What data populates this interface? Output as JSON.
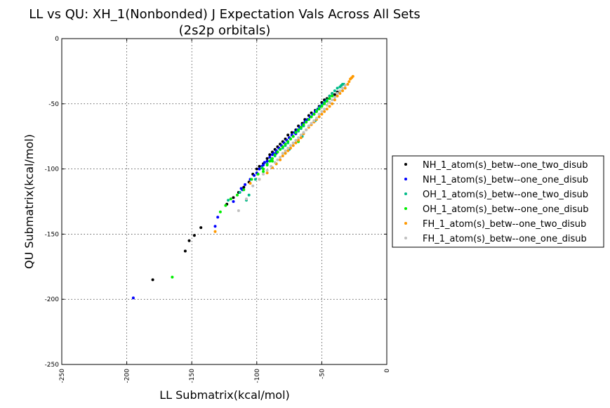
{
  "chart_data": {
    "type": "scatter",
    "title": [
      "LL vs QU: XH_1(Nonbonded) J Expectation Vals Across All Sets",
      "(2s2p orbitals)"
    ],
    "xlabel": "LL Submatrix(kcal/mol)",
    "ylabel": "QU Submatrix(kcal/mol)",
    "xlim": [
      -250,
      0
    ],
    "ylim": [
      -250,
      0
    ],
    "xticks": [
      -250,
      -200,
      -150,
      -100,
      -50,
      0
    ],
    "yticks": [
      0,
      -50,
      -100,
      -150,
      -200,
      -250
    ],
    "grid": true,
    "legend_position": "outside-right",
    "series": [
      {
        "name": "NH_1_atom(s)_betw--one_two_disub",
        "color": "#000000",
        "points": [
          [
            -180,
            -185
          ],
          [
            -155,
            -163
          ],
          [
            -152,
            -155
          ],
          [
            -148,
            -151
          ],
          [
            -143,
            -145
          ],
          [
            -123,
            -127
          ],
          [
            -118,
            -122
          ],
          [
            -114,
            -118
          ],
          [
            -110,
            -114
          ],
          [
            -106,
            -110
          ],
          [
            -103,
            -104
          ],
          [
            -100,
            -100
          ],
          [
            -98,
            -98
          ],
          [
            -95,
            -96
          ],
          [
            -92,
            -92
          ],
          [
            -90,
            -89
          ],
          [
            -88,
            -87
          ],
          [
            -86,
            -85
          ],
          [
            -84,
            -83
          ],
          [
            -82,
            -81
          ],
          [
            -80,
            -79
          ],
          [
            -78,
            -77
          ],
          [
            -76,
            -74
          ],
          [
            -73,
            -72
          ],
          [
            -70,
            -70
          ],
          [
            -68,
            -67
          ],
          [
            -65,
            -65
          ],
          [
            -63,
            -62
          ],
          [
            -60,
            -59
          ],
          [
            -58,
            -57
          ],
          [
            -55,
            -55
          ],
          [
            -52,
            -52
          ],
          [
            -50,
            -49
          ],
          [
            -48,
            -47
          ],
          [
            -46,
            -46
          ],
          [
            -44,
            -44
          ],
          [
            -42,
            -42
          ],
          [
            -40,
            -43
          ],
          [
            -38,
            -41
          ],
          [
            -85,
            -86
          ],
          [
            -75,
            -76
          ],
          [
            -66,
            -68
          ],
          [
            -56,
            -58
          ]
        ]
      },
      {
        "name": "NH_1_atom(s)_betw--one_one_disub",
        "color": "#0000ff",
        "points": [
          [
            -195,
            -199
          ],
          [
            -132,
            -144
          ],
          [
            -130,
            -137
          ],
          [
            -118,
            -125
          ],
          [
            -112,
            -115
          ],
          [
            -111,
            -116
          ],
          [
            -109,
            -112
          ],
          [
            -105,
            -108
          ],
          [
            -102,
            -105
          ],
          [
            -100,
            -103
          ],
          [
            -98,
            -100
          ],
          [
            -96,
            -98
          ],
          [
            -94,
            -95
          ],
          [
            -92,
            -94
          ],
          [
            -90,
            -91
          ],
          [
            -88,
            -89
          ],
          [
            -87,
            -88
          ],
          [
            -85,
            -86
          ],
          [
            -83,
            -84
          ],
          [
            -81,
            -82
          ],
          [
            -79,
            -80
          ],
          [
            -77,
            -78
          ],
          [
            -75,
            -76
          ],
          [
            -73,
            -74
          ],
          [
            -71,
            -72
          ],
          [
            -69,
            -70
          ],
          [
            -67,
            -68
          ],
          [
            -65,
            -66
          ],
          [
            -63,
            -64
          ],
          [
            -61,
            -62
          ],
          [
            -59,
            -60
          ],
          [
            -57,
            -58
          ],
          [
            -55,
            -56
          ],
          [
            -53,
            -54
          ],
          [
            -51,
            -52
          ],
          [
            -49,
            -50
          ],
          [
            -47,
            -48
          ],
          [
            -95,
            -97
          ],
          [
            -85,
            -88
          ],
          [
            -70,
            -73
          ],
          [
            -62,
            -63
          ]
        ]
      },
      {
        "name": "OH_1_atom(s)_betw--one_two_disub",
        "color": "#00bb88",
        "points": [
          [
            -122,
            -124
          ],
          [
            -113,
            -118
          ],
          [
            -108,
            -124
          ],
          [
            -106,
            -120
          ],
          [
            -101,
            -108
          ],
          [
            -96,
            -99
          ],
          [
            -92,
            -96
          ],
          [
            -89,
            -93
          ],
          [
            -86,
            -90
          ],
          [
            -84,
            -87
          ],
          [
            -82,
            -85
          ],
          [
            -80,
            -84
          ],
          [
            -78,
            -82
          ],
          [
            -76,
            -80
          ],
          [
            -74,
            -77
          ],
          [
            -72,
            -75
          ],
          [
            -70,
            -72
          ],
          [
            -68,
            -71
          ],
          [
            -66,
            -69
          ],
          [
            -64,
            -67
          ],
          [
            -62,
            -64
          ],
          [
            -60,
            -62
          ],
          [
            -58,
            -60
          ],
          [
            -56,
            -58
          ],
          [
            -54,
            -55
          ],
          [
            -52,
            -53
          ],
          [
            -50,
            -51
          ],
          [
            -48,
            -49
          ],
          [
            -46,
            -47
          ],
          [
            -44,
            -44
          ],
          [
            -42,
            -42
          ],
          [
            -40,
            -40
          ],
          [
            -38,
            -38
          ],
          [
            -36,
            -37
          ],
          [
            -35,
            -36
          ],
          [
            -34,
            -35
          ],
          [
            -33,
            -35
          ],
          [
            -65,
            -75
          ],
          [
            -75,
            -85
          ],
          [
            -55,
            -63
          ]
        ]
      },
      {
        "name": "OH_1_atom(s)_betw--one_one_disub",
        "color": "#00ee00",
        "points": [
          [
            -165,
            -183
          ],
          [
            -128,
            -133
          ],
          [
            -124,
            -128
          ],
          [
            -120,
            -123
          ],
          [
            -115,
            -120
          ],
          [
            -110,
            -116
          ],
          [
            -104,
            -108
          ],
          [
            -99,
            -104
          ],
          [
            -95,
            -100
          ],
          [
            -92,
            -97
          ],
          [
            -90,
            -94
          ],
          [
            -88,
            -92
          ],
          [
            -86,
            -89
          ],
          [
            -84,
            -87
          ],
          [
            -82,
            -85
          ],
          [
            -80,
            -83
          ],
          [
            -78,
            -81
          ],
          [
            -76,
            -79
          ],
          [
            -74,
            -77
          ],
          [
            -72,
            -75
          ],
          [
            -70,
            -72
          ],
          [
            -68,
            -70
          ],
          [
            -66,
            -68
          ],
          [
            -64,
            -66
          ],
          [
            -62,
            -64
          ],
          [
            -60,
            -62
          ],
          [
            -58,
            -60
          ],
          [
            -56,
            -58
          ],
          [
            -54,
            -56
          ],
          [
            -52,
            -54
          ],
          [
            -50,
            -52
          ],
          [
            -48,
            -50
          ],
          [
            -46,
            -48
          ],
          [
            -44,
            -46
          ],
          [
            -42,
            -44
          ],
          [
            -85,
            -96
          ],
          [
            -78,
            -88
          ],
          [
            -68,
            -79
          ],
          [
            -95,
            -102
          ],
          [
            -88,
            -94
          ]
        ]
      },
      {
        "name": "FH_1_atom(s)_betw--one_two_disub",
        "color": "#ff9900",
        "points": [
          [
            -132,
            -148
          ],
          [
            -105,
            -111
          ],
          [
            -98,
            -108
          ],
          [
            -92,
            -103
          ],
          [
            -88,
            -99
          ],
          [
            -85,
            -96
          ],
          [
            -82,
            -93
          ],
          [
            -80,
            -90
          ],
          [
            -78,
            -88
          ],
          [
            -76,
            -86
          ],
          [
            -74,
            -84
          ],
          [
            -72,
            -82
          ],
          [
            -70,
            -80
          ],
          [
            -68,
            -78
          ],
          [
            -66,
            -76
          ],
          [
            -64,
            -73
          ],
          [
            -62,
            -70
          ],
          [
            -60,
            -68
          ],
          [
            -58,
            -66
          ],
          [
            -56,
            -64
          ],
          [
            -54,
            -62
          ],
          [
            -52,
            -60
          ],
          [
            -50,
            -58
          ],
          [
            -48,
            -56
          ],
          [
            -46,
            -54
          ],
          [
            -44,
            -52
          ],
          [
            -42,
            -50
          ],
          [
            -40,
            -47
          ],
          [
            -38,
            -44
          ],
          [
            -36,
            -42
          ],
          [
            -34,
            -40
          ],
          [
            -32,
            -38
          ],
          [
            -30,
            -35
          ],
          [
            -29,
            -33
          ],
          [
            -28,
            -31
          ],
          [
            -27,
            -30
          ],
          [
            -26,
            -29
          ]
        ]
      },
      {
        "name": "FH_1_atom(s)_betw--one_one_disub",
        "color": "#c0c0c0",
        "points": [
          [
            -114,
            -132
          ],
          [
            -108,
            -123
          ],
          [
            -103,
            -113
          ],
          [
            -98,
            -108
          ],
          [
            -95,
            -104
          ],
          [
            -92,
            -101
          ],
          [
            -89,
            -98
          ],
          [
            -86,
            -95
          ],
          [
            -84,
            -93
          ],
          [
            -82,
            -91
          ],
          [
            -80,
            -88
          ],
          [
            -78,
            -86
          ],
          [
            -76,
            -84
          ],
          [
            -74,
            -82
          ],
          [
            -72,
            -80
          ],
          [
            -70,
            -78
          ],
          [
            -68,
            -76
          ],
          [
            -66,
            -74
          ],
          [
            -64,
            -72
          ],
          [
            -62,
            -70
          ],
          [
            -60,
            -67
          ],
          [
            -58,
            -65
          ],
          [
            -56,
            -63
          ],
          [
            -54,
            -61
          ],
          [
            -52,
            -58
          ],
          [
            -50,
            -56
          ],
          [
            -48,
            -54
          ],
          [
            -46,
            -51
          ],
          [
            -44,
            -49
          ],
          [
            -42,
            -47
          ],
          [
            -40,
            -45
          ],
          [
            -38,
            -42
          ],
          [
            -36,
            -40
          ],
          [
            -34,
            -38
          ],
          [
            -32,
            -36
          ]
        ]
      }
    ]
  }
}
